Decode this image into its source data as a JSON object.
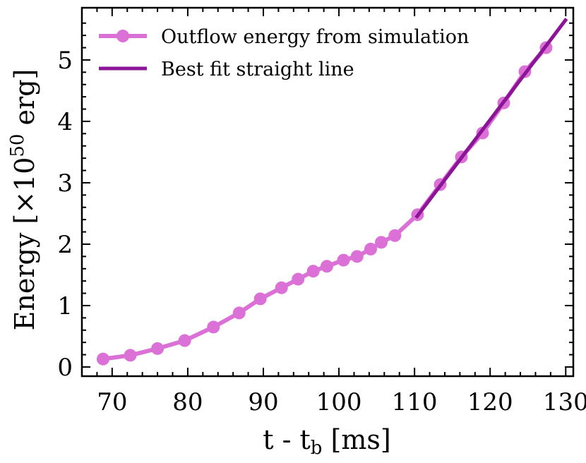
{
  "chart_data": {
    "type": "line",
    "xlabel_main": "t - t",
    "xlabel_sub": "b",
    "xlabel_unit": "[ms]",
    "ylabel_main": "Energy [×10",
    "ylabel_sup": "50",
    "ylabel_unit": "erg]",
    "xlim": [
      66,
      131
    ],
    "ylim": [
      -0.15,
      5.85
    ],
    "x_ticks": [
      70,
      80,
      90,
      100,
      110,
      120,
      130
    ],
    "y_ticks": [
      0,
      1,
      2,
      3,
      4,
      5
    ],
    "x_tick_labels": [
      "70",
      "80",
      "90",
      "100",
      "110",
      "120",
      "130"
    ],
    "y_tick_labels": [
      "0",
      "1",
      "2",
      "3",
      "4",
      "5"
    ],
    "legend_position": "top-left",
    "colors": {
      "simulation": "#db70d6",
      "fit": "#8b1596"
    },
    "series": [
      {
        "name": "Outflow energy from simulation",
        "x": [
          68.8,
          72.4,
          76.0,
          79.6,
          83.4,
          86.8,
          89.6,
          92.4,
          94.6,
          96.6,
          98.4,
          100.6,
          102.4,
          104.2,
          105.6,
          107.4,
          110.4,
          113.4,
          116.2,
          119.0,
          121.8,
          124.6,
          127.4
        ],
        "y": [
          0.13,
          0.19,
          0.3,
          0.43,
          0.65,
          0.88,
          1.11,
          1.29,
          1.43,
          1.56,
          1.64,
          1.74,
          1.8,
          1.92,
          2.03,
          2.14,
          2.48,
          2.97,
          3.42,
          3.81,
          4.3,
          4.81,
          5.2
        ]
      },
      {
        "name": "Best fit straight line",
        "x": [
          110.2,
          130.1
        ],
        "y": [
          2.43,
          5.67
        ]
      }
    ]
  }
}
